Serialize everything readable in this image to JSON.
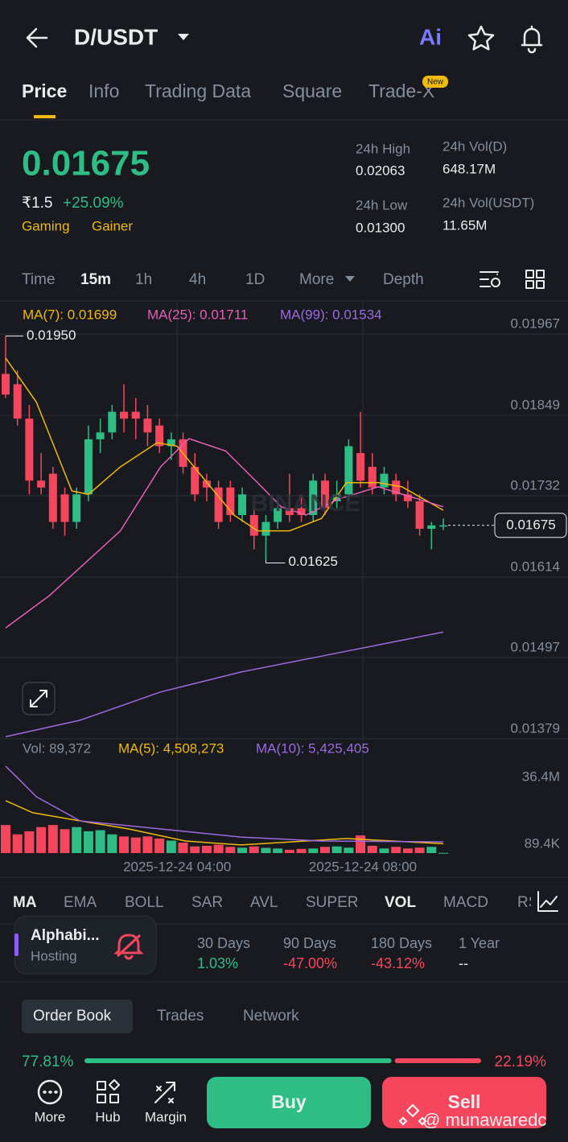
{
  "header": {
    "pair": "D/USDT",
    "ai": "Ai"
  },
  "tabs": [
    "Price",
    "Info",
    "Trading Data",
    "Square",
    "Trade-X"
  ],
  "new_badge": "New",
  "ticker": {
    "price": 0.01675,
    "fiat": "₹1.5",
    "change": "+25.09%",
    "tags": [
      "Gaming",
      "Gainer"
    ],
    "stats": [
      {
        "label": "24h High",
        "value": "0.02063"
      },
      {
        "label": "24h Low",
        "value": "0.01300"
      },
      {
        "label": "24h Vol(D)",
        "value": "648.17M"
      },
      {
        "label": "24h Vol(USDT)",
        "value": "11.65M"
      }
    ]
  },
  "intervals": [
    "Time",
    "15m",
    "1h",
    "4h",
    "1D",
    "More",
    "Depth"
  ],
  "chart_data": {
    "type": "candlestick",
    "up_color": "#2ebd85",
    "down_color": "#f6465d",
    "xlim": [
      0,
      37
    ],
    "ylim": [
      0.01379,
      0.01967
    ],
    "yticks": [
      0.01967,
      0.01849,
      0.01732,
      0.01614,
      0.01497,
      0.01379
    ],
    "xticks": [
      {
        "value": 14.5,
        "label": "2025-12-24 04:00"
      },
      {
        "value": 30.2,
        "label": "2025-12-24 08:00"
      }
    ],
    "candles": [
      [
        0.01895,
        0.0195,
        0.0186,
        0.01865
      ],
      [
        0.0188,
        0.019,
        0.0182,
        0.0183
      ],
      [
        0.0183,
        0.0185,
        0.0172,
        0.0174
      ],
      [
        0.0174,
        0.0178,
        0.0172,
        0.0173
      ],
      [
        0.0175,
        0.0176,
        0.0167,
        0.0168
      ],
      [
        0.0172,
        0.0173,
        0.0166,
        0.0168
      ],
      [
        0.0168,
        0.0173,
        0.0167,
        0.0172
      ],
      [
        0.0172,
        0.0182,
        0.0171,
        0.018
      ],
      [
        0.018,
        0.0183,
        0.0178,
        0.0181
      ],
      [
        0.0181,
        0.0185,
        0.018,
        0.0184
      ],
      [
        0.0184,
        0.0188,
        0.0181,
        0.0183
      ],
      [
        0.0184,
        0.0186,
        0.018,
        0.0183
      ],
      [
        0.0183,
        0.0185,
        0.0179,
        0.0181
      ],
      [
        0.0182,
        0.0183,
        0.0178,
        0.0179
      ],
      [
        0.0179,
        0.0181,
        0.0177,
        0.018
      ],
      [
        0.018,
        0.0181,
        0.0175,
        0.0176
      ],
      [
        0.0176,
        0.0178,
        0.0171,
        0.0172
      ],
      [
        0.0174,
        0.0175,
        0.0171,
        0.0173
      ],
      [
        0.0173,
        0.0174,
        0.0167,
        0.0168
      ],
      [
        0.0173,
        0.0174,
        0.0168,
        0.0169
      ],
      [
        0.0169,
        0.0173,
        0.0168,
        0.0172
      ],
      [
        0.0169,
        0.017,
        0.0164,
        0.0166
      ],
      [
        0.0166,
        0.0169,
        0.01625,
        0.0168
      ],
      [
        0.0168,
        0.0171,
        0.0167,
        0.017
      ],
      [
        0.017,
        0.0175,
        0.0168,
        0.0169
      ],
      [
        0.017,
        0.0172,
        0.0168,
        0.0169
      ],
      [
        0.0169,
        0.0175,
        0.0168,
        0.0174
      ],
      [
        0.0174,
        0.0175,
        0.0169,
        0.017
      ],
      [
        0.0171,
        0.0174,
        0.017,
        0.0172
      ],
      [
        0.0172,
        0.018,
        0.0171,
        0.0179
      ],
      [
        0.0178,
        0.0184,
        0.0173,
        0.0174
      ],
      [
        0.0176,
        0.0178,
        0.0172,
        0.0173
      ],
      [
        0.0173,
        0.0176,
        0.0172,
        0.0175
      ],
      [
        0.0174,
        0.0175,
        0.0171,
        0.0172
      ],
      [
        0.0172,
        0.0174,
        0.017,
        0.0171
      ],
      [
        0.0171,
        0.0172,
        0.0166,
        0.0167
      ],
      [
        0.0167,
        0.0168,
        0.0164,
        0.01675
      ],
      [
        0.01675,
        0.01685,
        0.01668,
        0.01675
      ]
    ],
    "series": [
      {
        "name": "MA(7): 0.01699",
        "color": "#f0b90b",
        "x": [
          0,
          2.6,
          5.6,
          7,
          9.7,
          12.8,
          14.5,
          16.5,
          19.3,
          21.3,
          24,
          26.7,
          28.8,
          31.5,
          33.5,
          37
        ],
        "values": [
          0.01918,
          0.01854,
          0.01725,
          0.0172,
          0.0176,
          0.01795,
          0.0179,
          0.01748,
          0.0169,
          0.01667,
          0.01667,
          0.01685,
          0.01737,
          0.01737,
          0.01731,
          0.01697
        ]
      },
      {
        "name": "MA(25): 0.01711",
        "color": "#e75fb7",
        "x": [
          0,
          3.7,
          9.7,
          13.1,
          15.5,
          18.6,
          21.3,
          23.3,
          25.4,
          28.1,
          31.5,
          37
        ],
        "values": [
          0.01526,
          0.01573,
          0.01667,
          0.0176,
          0.01801,
          0.01783,
          0.01737,
          0.01702,
          0.0169,
          0.01713,
          0.01731,
          0.01702
        ]
      },
      {
        "name": "MA(99): 0.01534",
        "color": "#9c6ade",
        "x": [
          0,
          6.3,
          13.1,
          19.9,
          26.7,
          37
        ],
        "values": [
          0.01368,
          0.01392,
          0.01433,
          0.01462,
          0.01485,
          0.0152
        ]
      }
    ],
    "annotations": [
      {
        "x": 0,
        "value": 0.0195,
        "label": "0.01950"
      },
      {
        "x": 22,
        "value": 0.01625,
        "label": "0.01625"
      }
    ],
    "last_price": 0.01675,
    "volume": {
      "legend": "Vol: 89,372",
      "ylim": [
        0,
        36400000
      ],
      "yticks": [
        {
          "value": 36400000,
          "label": "36.4M"
        },
        {
          "value": 89400,
          "label": "89.4K"
        }
      ],
      "values": [
        13500000,
        9000000,
        10500000,
        12500000,
        13500000,
        11500000,
        12500000,
        10500000,
        11000000,
        9000000,
        8000000,
        7500000,
        8000000,
        7000000,
        6000000,
        5000000,
        3200000,
        3500000,
        4000000,
        3000000,
        2600000,
        3200000,
        2500000,
        2200000,
        1600000,
        2000000,
        2200000,
        3000000,
        3200000,
        2600000,
        8500000,
        3500000,
        2200000,
        3000000,
        2200000,
        2600000,
        3000000,
        89372
      ],
      "series": [
        {
          "name": "MA(5): 4,508,273",
          "color": "#f0b90b",
          "x": [
            0,
            2.3,
            6.3,
            10.4,
            15.2,
            19.9,
            28.8,
            37
          ],
          "values": [
            25200000,
            19400000,
            15500000,
            11600000,
            5800000,
            3900000,
            7000000,
            4508273
          ]
        },
        {
          "name": "MA(10): 5,425,405",
          "color": "#9c6ade",
          "x": [
            0,
            0.9,
            2.6,
            6.3,
            13.1,
            19.9,
            26.7,
            37
          ],
          "values": [
            41800000,
            36800000,
            27100000,
            15500000,
            11600000,
            7700000,
            5800000,
            5425405
          ]
        }
      ]
    }
  },
  "indicators": [
    "MA",
    "EMA",
    "BOLL",
    "SAR",
    "AVL",
    "SUPER",
    "VOL",
    "MACD",
    "RSI"
  ],
  "popup": {
    "title": "Alphabi...",
    "subtitle": "Hosting"
  },
  "performance": [
    {
      "label": "30 Days",
      "value": "1.03%"
    },
    {
      "label": "90 Days",
      "value": "-47.00%"
    },
    {
      "label": "180 Days",
      "value": "-43.12%"
    },
    {
      "label": "1 Year",
      "value": "--"
    }
  ],
  "order_book": {
    "tabs": [
      "Order Book",
      "Trades",
      "Network"
    ],
    "ratio": {
      "values": [
        77.81,
        22.19
      ],
      "value_labels": [
        "77.81%",
        "22.19%"
      ]
    }
  },
  "bottom_nav": [
    "More",
    "Hub",
    "Margin"
  ],
  "buttons": [
    "Buy",
    "Sell"
  ],
  "watermark": "@ munawaredc"
}
